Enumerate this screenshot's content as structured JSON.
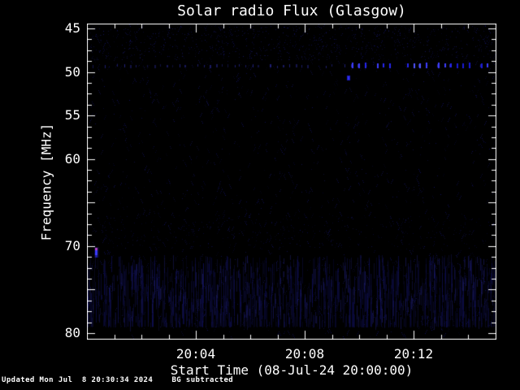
{
  "title": "Solar radio Flux (Glasgow)",
  "footer": "Updated Mon Jul  8 20:30:34 2024    BG subtracted",
  "chart_data": {
    "type": "heatmap",
    "title": "Solar radio Flux (Glasgow)",
    "xlabel": "Start Time (08-Jul-24 20:00:00)",
    "ylabel": "Frequency [MHz]",
    "x_start_time": "20:00:00",
    "x_end_time": "20:15:00",
    "x_span_minutes": 15,
    "x_major_ticks": [
      {
        "minute": 4,
        "label": "20:04"
      },
      {
        "minute": 8,
        "label": "20:08"
      },
      {
        "minute": 12,
        "label": "20:12"
      }
    ],
    "x_minor_step_minutes": 1,
    "ylim_top_mhz": 44.4,
    "ylim_bottom_mhz": 80.7,
    "y_labeled_ticks": [
      {
        "value": 45,
        "label": "45"
      },
      {
        "value": 50,
        "label": "50"
      },
      {
        "value": 55,
        "label": "55"
      },
      {
        "value": 60,
        "label": "60"
      },
      {
        "value": 70,
        "label": "70"
      },
      {
        "value": 80,
        "label": "80"
      }
    ],
    "y_unlabeled_major_ticks": [
      65,
      75
    ],
    "y_minor_step_mhz": 1.25,
    "legend_position": "none",
    "grid": false,
    "colors": {
      "background": "#000000",
      "frame": "#ffffff",
      "text": "#ffffff",
      "noise_speckle": "#16166e",
      "signal_faint": "#1a1a78",
      "signal_bright": "#3434ff",
      "burst_core": "#3b3bff",
      "burst_accent": "#b23ec8"
    },
    "features": [
      {
        "name": "faint-dotted-interference-line",
        "freq_mhz": 49.3,
        "from_min": 0.2,
        "to_min": 9.6,
        "pattern": "dotted",
        "intensity": "faint"
      },
      {
        "name": "bright-dashed-emission-line",
        "freq_mhz": 49.3,
        "from_min": 9.75,
        "to_min": 15,
        "pattern": "dashed",
        "intensity": "bright"
      },
      {
        "name": "point-source",
        "freq_mhz": 50.7,
        "time_min": 9.6,
        "intensity": "medium"
      },
      {
        "name": "burst-point",
        "freq_mhz": 70.8,
        "time_min": 0.35,
        "intensity": "bright",
        "accent": "magenta-core"
      },
      {
        "name": "broadband-striation-band",
        "freq_from_mhz": 71.0,
        "freq_to_mhz": 79.4,
        "from_min": 0,
        "to_min": 15,
        "pattern": "vertical-striations",
        "intensity": "faint"
      }
    ]
  }
}
